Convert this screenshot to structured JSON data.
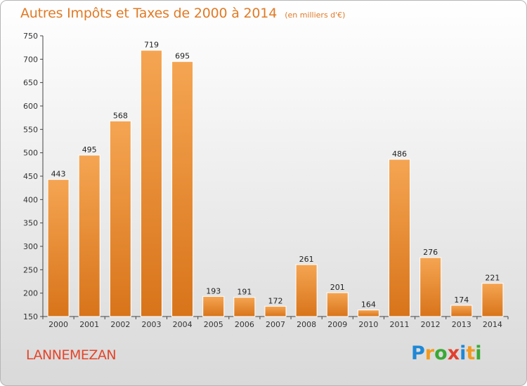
{
  "title": "Autres Impôts et Taxes de 2000 à 2014",
  "subtitle": "(en milliers d'€)",
  "city": "LANNEMEZAN",
  "logo": {
    "text": "Proxiti",
    "letters": [
      {
        "char": "P",
        "color": "#1e88d6"
      },
      {
        "char": "r",
        "color": "#f29a1f"
      },
      {
        "char": "o",
        "color": "#3aa935"
      },
      {
        "char": "x",
        "color": "#e2402e"
      },
      {
        "char": "i",
        "color": "#1e88d6"
      },
      {
        "char": "t",
        "color": "#f29a1f"
      },
      {
        "char": "i",
        "color": "#3aa935"
      }
    ]
  },
  "colors": {
    "bar_top": "#f5a552",
    "bar_bottom": "#d8741a",
    "title": "#e07a25",
    "city": "#e4452a"
  },
  "chart_data": {
    "type": "bar",
    "title": "Autres Impôts et Taxes de 2000 à 2014",
    "subtitle": "(en milliers d'€)",
    "categories": [
      "2000",
      "2001",
      "2002",
      "2003",
      "2004",
      "2005",
      "2006",
      "2007",
      "2008",
      "2009",
      "2010",
      "2011",
      "2012",
      "2013",
      "2014"
    ],
    "values": [
      443,
      495,
      568,
      719,
      695,
      193,
      191,
      172,
      261,
      201,
      164,
      486,
      276,
      174,
      221
    ],
    "ylim": [
      150,
      750
    ],
    "yticks": [
      150,
      200,
      250,
      300,
      350,
      400,
      450,
      500,
      550,
      600,
      650,
      700,
      750
    ],
    "grid": false,
    "data_labels": true
  }
}
